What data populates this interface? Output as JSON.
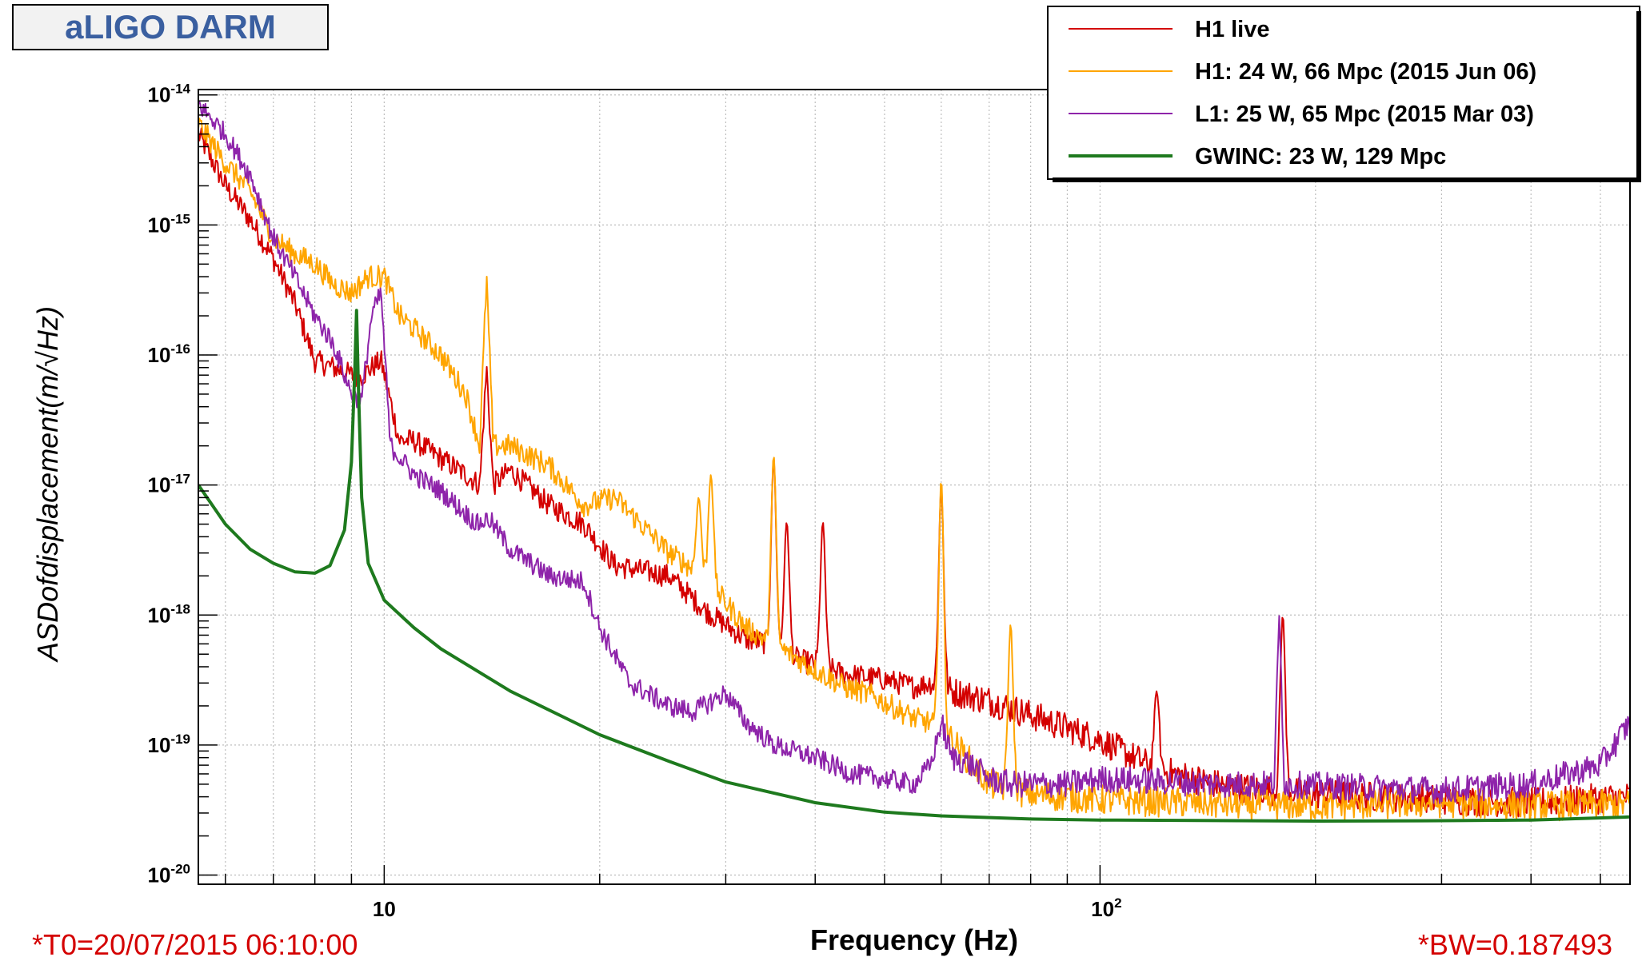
{
  "title_box": {
    "text": "aLIGO DARM"
  },
  "footer": {
    "t0": "*T0=20/07/2015 06:10:00",
    "bw": "*BW=0.187493"
  },
  "chart_data": {
    "type": "line",
    "title": "aLIGO DARM",
    "xlabel": "Frequency (Hz)",
    "ylabel": "ASDofdisplacement(m/√Hz)",
    "x_scale": "log",
    "y_scale": "log",
    "xlim": [
      5.5,
      550
    ],
    "ylim": [
      8.5e-21,
      1.1e-14
    ],
    "grid": true,
    "legend_position": "top-right",
    "x_ticks": [
      {
        "value": 10,
        "label_base": "10",
        "label_exp": ""
      },
      {
        "value": 100,
        "label_base": "10",
        "label_exp": "2"
      }
    ],
    "y_ticks": [
      {
        "value": 1e-14,
        "label_base": "10",
        "label_exp": "-14"
      },
      {
        "value": 1e-15,
        "label_base": "10",
        "label_exp": "-15"
      },
      {
        "value": 1e-16,
        "label_base": "10",
        "label_exp": "-16"
      },
      {
        "value": 1e-17,
        "label_base": "10",
        "label_exp": "-17"
      },
      {
        "value": 1e-18,
        "label_base": "10",
        "label_exp": "-18"
      },
      {
        "value": 1e-19,
        "label_base": "10",
        "label_exp": "-19"
      },
      {
        "value": 1e-20,
        "label_base": "10",
        "label_exp": "-20"
      }
    ],
    "series": [
      {
        "name": "H1 live",
        "color": "#d40000",
        "width": 2,
        "noise": 0.18,
        "x": [
          5.5,
          6,
          6.5,
          7,
          7.5,
          8,
          8.5,
          9,
          9.2,
          9.6,
          9.9,
          10.5,
          11,
          12,
          13,
          13.6,
          13.9,
          14.2,
          15,
          17,
          19,
          21,
          25,
          28,
          32,
          35,
          38,
          41,
          44,
          50,
          55,
          58,
          60,
          62,
          70,
          80,
          100,
          120,
          150,
          200,
          300,
          400,
          550
        ],
        "y": [
          5e-15,
          2e-15,
          1.1e-15,
          5.5e-16,
          2.5e-16,
          9e-17,
          8e-17,
          7e-17,
          6.5e-17,
          8e-17,
          9e-17,
          2.2e-17,
          2.2e-17,
          1.6e-17,
          1.2e-17,
          1e-17,
          8e-17,
          1e-17,
          1.3e-17,
          7e-18,
          5e-18,
          2.4e-18,
          2e-18,
          1.1e-18,
          6.5e-19,
          6e-19,
          4.5e-19,
          4e-19,
          3.5e-19,
          3.2e-19,
          2.8e-19,
          3e-19,
          2.8e-19,
          2.6e-19,
          2.2e-19,
          1.7e-19,
          1.1e-19,
          6.5e-20,
          4.8e-20,
          4.2e-20,
          3.8e-20,
          3.6e-20,
          4e-20
        ],
        "peaks": [
          [
            35,
            1.6e-17
          ],
          [
            36.5,
            5.2e-18
          ],
          [
            41,
            5.2e-18
          ],
          [
            60,
            9.5e-18
          ],
          [
            120,
            2.6e-19
          ],
          [
            180,
            1e-18
          ]
        ]
      },
      {
        "name": "H1: 24 W, 66 Mpc (2015 Jun 06)",
        "color": "#ffa500",
        "width": 2,
        "noise": 0.18,
        "x": [
          5.5,
          6,
          6.5,
          7,
          7.5,
          8,
          8.5,
          9,
          9.5,
          10,
          10.5,
          11,
          12,
          13,
          13.6,
          13.9,
          14.2,
          15,
          17,
          19,
          21,
          25,
          28,
          32,
          35,
          38,
          41,
          44,
          48,
          55,
          60,
          62,
          70,
          80,
          100,
          150,
          200,
          300,
          400,
          550
        ],
        "y": [
          6e-15,
          3e-15,
          1.8e-15,
          8e-16,
          6e-16,
          5e-16,
          3.5e-16,
          3e-16,
          4e-16,
          4e-16,
          2e-16,
          1.6e-16,
          1e-16,
          5e-17,
          2e-17,
          4e-16,
          2e-17,
          2e-17,
          1.4e-17,
          7e-18,
          8e-18,
          3e-18,
          2e-18,
          8e-19,
          6e-19,
          4.5e-19,
          3.5e-19,
          2.8e-19,
          2.4e-19,
          1.6e-19,
          1.4e-19,
          1.1e-19,
          5e-20,
          4.2e-20,
          3.8e-20,
          3.5e-20,
          3.4e-20,
          3.6e-20,
          3.4e-20,
          3.5e-20
        ],
        "peaks": [
          [
            27.5,
            8e-18
          ],
          [
            28.6,
            1.2e-17
          ],
          [
            35,
            1.7e-17
          ],
          [
            60,
            1.1e-17
          ],
          [
            75,
            8.5e-19
          ]
        ]
      },
      {
        "name": "L1: 25 W, 65 Mpc (2015 Mar 03)",
        "color": "#8e24aa",
        "width": 2,
        "noise": 0.16,
        "x": [
          5.5,
          6,
          6.5,
          7,
          7.5,
          8,
          8.5,
          9,
          9.3,
          9.6,
          9.9,
          10.2,
          11,
          12,
          13,
          13.5,
          14,
          15,
          17,
          19,
          20,
          22,
          25,
          27,
          30,
          32,
          35,
          40,
          45,
          50,
          55,
          58,
          60,
          62,
          65,
          70,
          75,
          90,
          100,
          150,
          175,
          178,
          181,
          300,
          400,
          500,
          550
        ],
        "y": [
          8.5e-15,
          5e-15,
          2.4e-15,
          8e-16,
          4e-16,
          2e-16,
          1.2e-16,
          5e-17,
          4.5e-17,
          2e-16,
          3e-16,
          2e-17,
          1.2e-17,
          9e-18,
          6e-18,
          5e-18,
          5.5e-18,
          3.2e-18,
          2e-18,
          1.8e-18,
          8e-19,
          3e-19,
          2e-19,
          1.8e-19,
          2.5e-19,
          1.5e-19,
          1e-19,
          8e-20,
          6e-20,
          5.5e-20,
          5e-20,
          7e-20,
          1.5e-19,
          8e-20,
          7.5e-20,
          5.5e-20,
          5e-20,
          5e-20,
          5.5e-20,
          5e-20,
          5e-20,
          1e-18,
          5e-20,
          4.5e-20,
          5e-20,
          7e-20,
          1.5e-19
        ],
        "peaks": []
      },
      {
        "name": "GWINC: 23 W, 129 Mpc",
        "color": "#1e7a1e",
        "width": 4,
        "noise": 0,
        "x": [
          5.5,
          6,
          6.5,
          7,
          7.5,
          8,
          8.4,
          8.8,
          9.0,
          9.1,
          9.15,
          9.2,
          9.3,
          9.5,
          10,
          11,
          12,
          15,
          20,
          25,
          30,
          40,
          50,
          60,
          80,
          100,
          200,
          300,
          400,
          550
        ],
        "y": [
          1e-17,
          5e-18,
          3.2e-18,
          2.5e-18,
          2.15e-18,
          2.1e-18,
          2.4e-18,
          4.5e-18,
          1.5e-17,
          8e-17,
          2.2e-16,
          6e-17,
          8e-18,
          2.5e-18,
          1.3e-18,
          8e-19,
          5.5e-19,
          2.6e-19,
          1.2e-19,
          7.5e-20,
          5.2e-20,
          3.6e-20,
          3.05e-20,
          2.85e-20,
          2.7e-20,
          2.65e-20,
          2.6e-20,
          2.62e-20,
          2.65e-20,
          2.8e-20
        ],
        "peaks": []
      }
    ]
  }
}
